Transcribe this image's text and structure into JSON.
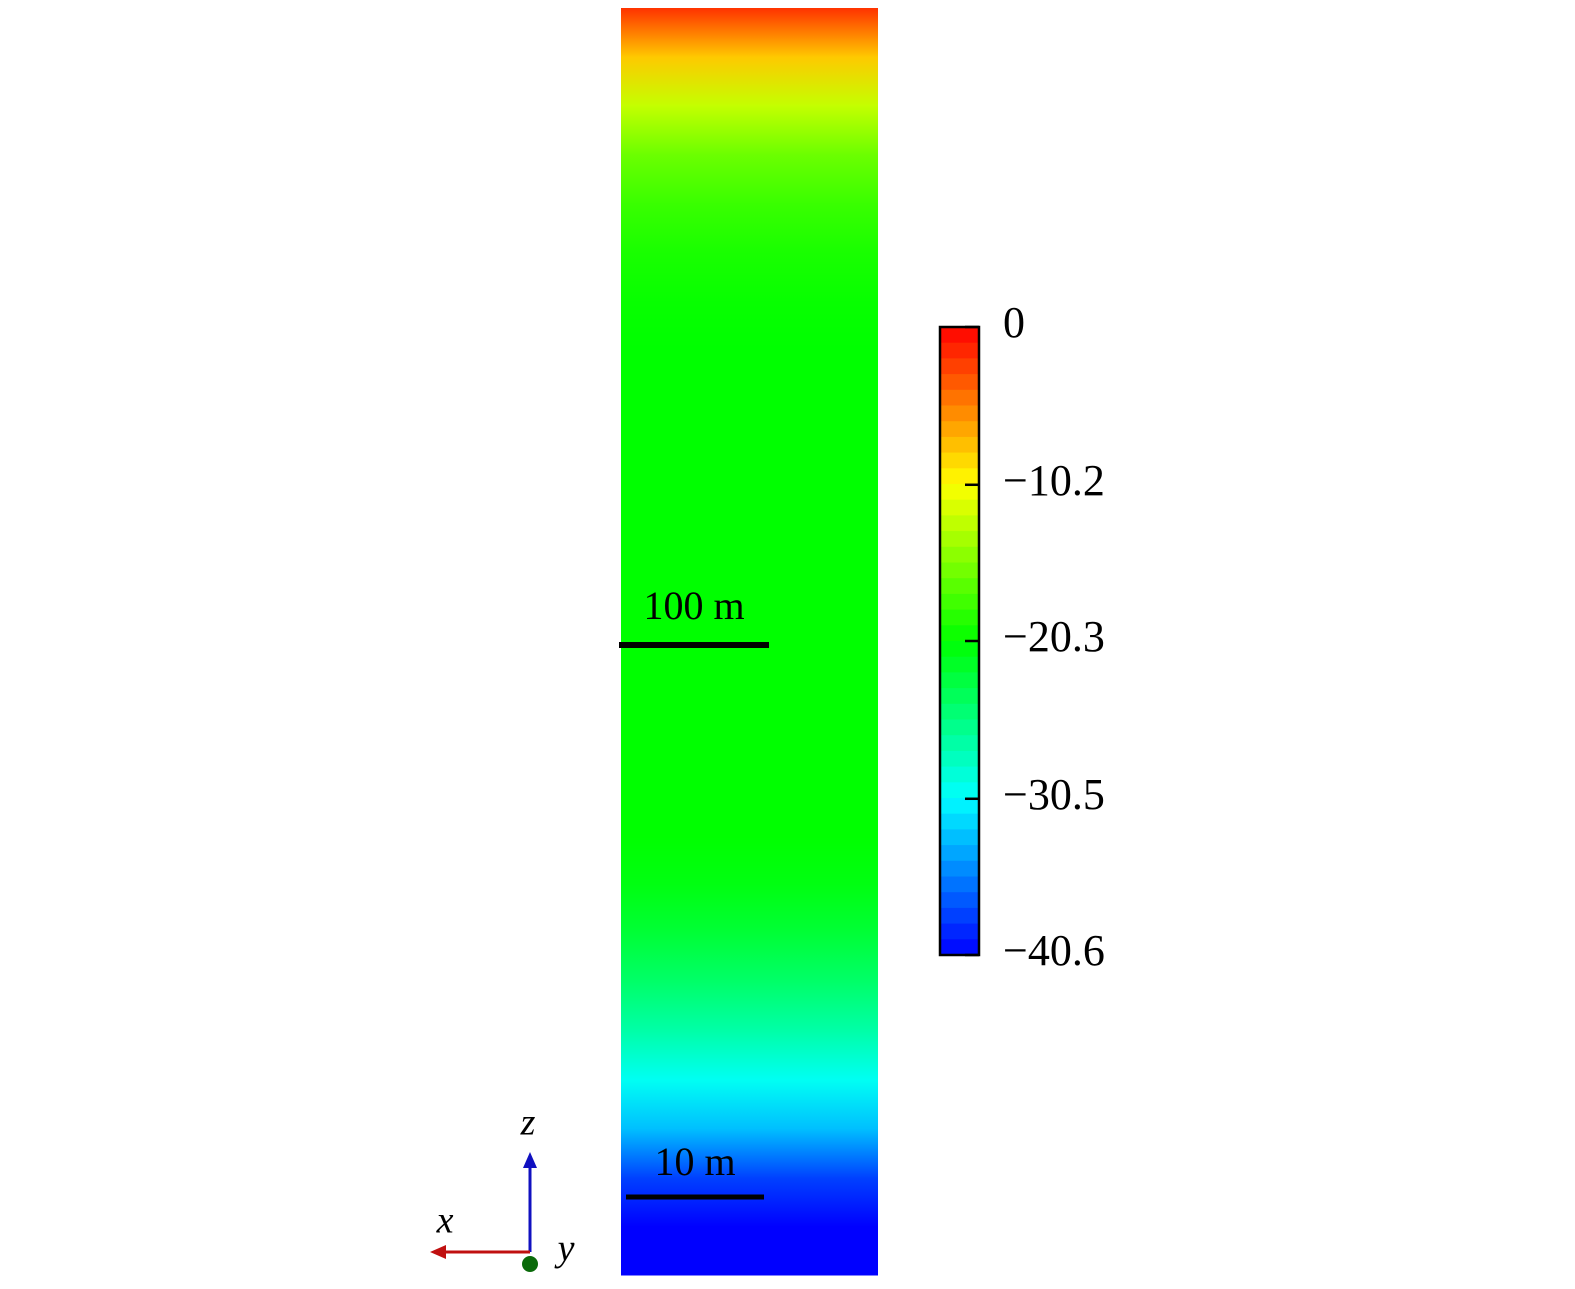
{
  "chart_data": {
    "type": "field",
    "clim": [
      -40.6,
      0
    ],
    "cticks": [
      0,
      {
        "value": -10.2,
        "label": "−10.2"
      },
      {
        "value": -20.3,
        "label": "−20.3"
      },
      {
        "value": -30.5,
        "label": "−30.5"
      },
      {
        "value": -40.6,
        "label": "−40.6"
      }
    ],
    "profile": [
      -2,
      -8,
      -12.5,
      -16,
      -18,
      -19.3,
      -20,
      -20.3,
      -20.3,
      -20.3,
      -20.3,
      -20.3,
      -20.3,
      -20.3,
      -20.3,
      -20.3,
      -20.3,
      -20.3,
      -21,
      -22.5,
      -24.5,
      -27,
      -30,
      -33,
      -38,
      -40.6
    ],
    "scale_bars": [
      {
        "label": "100 m"
      },
      {
        "label": "10 m"
      }
    ],
    "axes": {
      "x": "x",
      "y": "y",
      "z": "z"
    }
  }
}
